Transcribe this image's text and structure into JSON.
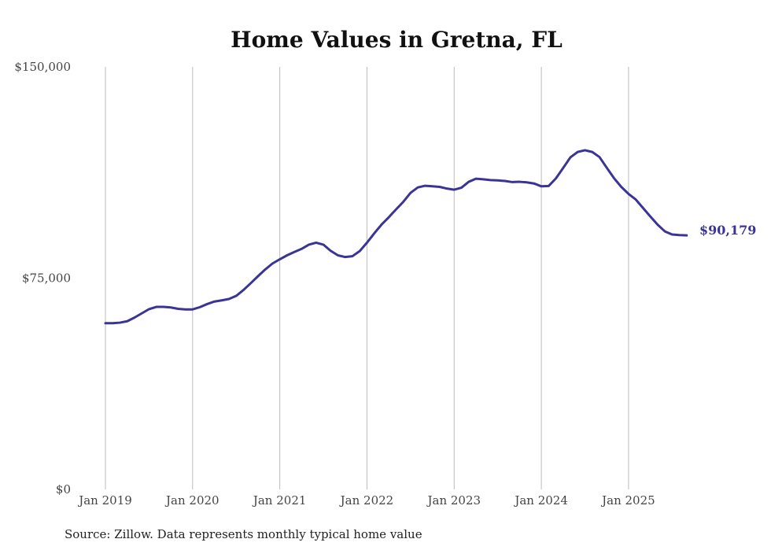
{
  "chart_data": {
    "type": "line",
    "title": "Home Values in Gretna, FL",
    "xlabel": "",
    "ylabel": "",
    "ylim": [
      0,
      150000
    ],
    "y_ticks": [
      {
        "value": 0,
        "label": "$0"
      },
      {
        "value": 75000,
        "label": "$75,000"
      },
      {
        "value": 150000,
        "label": "$150,000"
      }
    ],
    "x_ticks": [
      {
        "value": "2019-01",
        "label": "Jan 2019"
      },
      {
        "value": "2020-01",
        "label": "Jan 2020"
      },
      {
        "value": "2021-01",
        "label": "Jan 2021"
      },
      {
        "value": "2022-01",
        "label": "Jan 2022"
      },
      {
        "value": "2023-01",
        "label": "Jan 2023"
      },
      {
        "value": "2024-01",
        "label": "Jan 2024"
      },
      {
        "value": "2025-01",
        "label": "Jan 2025"
      }
    ],
    "grid": "vertical",
    "legend": "none",
    "color": "#3b3497",
    "end_label": "$90,179",
    "source": "Source: Zillow. Data represents monthly typical home value",
    "series": [
      {
        "x": [
          "2019-01",
          "2019-02",
          "2019-03",
          "2019-04",
          "2019-05",
          "2019-06",
          "2019-07",
          "2019-08",
          "2019-09",
          "2019-10",
          "2019-11",
          "2019-12",
          "2020-01",
          "2020-02",
          "2020-03",
          "2020-04",
          "2020-05",
          "2020-06",
          "2020-07",
          "2020-08",
          "2020-09",
          "2020-10",
          "2020-11",
          "2020-12",
          "2021-01",
          "2021-02",
          "2021-03",
          "2021-04",
          "2021-05",
          "2021-06",
          "2021-07",
          "2021-08",
          "2021-09",
          "2021-10",
          "2021-11",
          "2021-12",
          "2022-01",
          "2022-02",
          "2022-03",
          "2022-04",
          "2022-05",
          "2022-06",
          "2022-07",
          "2022-08",
          "2022-09",
          "2022-10",
          "2022-11",
          "2022-12",
          "2023-01",
          "2023-02",
          "2023-03",
          "2023-04",
          "2023-05",
          "2023-06",
          "2023-07",
          "2023-08",
          "2023-09",
          "2023-10",
          "2023-11",
          "2023-12",
          "2024-01",
          "2024-02",
          "2024-03",
          "2024-04",
          "2024-05",
          "2024-06",
          "2024-07",
          "2024-08",
          "2024-09",
          "2024-10",
          "2024-11",
          "2024-12",
          "2025-01",
          "2025-02",
          "2025-03",
          "2025-04",
          "2025-05",
          "2025-06",
          "2025-07",
          "2025-08",
          "2025-09"
        ],
        "values": [
          59000,
          59000,
          59200,
          59700,
          61000,
          62500,
          64000,
          64800,
          64800,
          64600,
          64100,
          63900,
          63900,
          64700,
          65800,
          66700,
          67100,
          67600,
          68700,
          70800,
          73200,
          75700,
          78100,
          80200,
          81700,
          83100,
          84300,
          85400,
          86900,
          87600,
          86900,
          84700,
          83100,
          82500,
          82800,
          84600,
          87600,
          90900,
          94000,
          96600,
          99400,
          102100,
          105300,
          107200,
          107800,
          107600,
          107400,
          106800,
          106400,
          107100,
          109200,
          110300,
          110100,
          109800,
          109700,
          109500,
          109100,
          109200,
          109000,
          108600,
          107600,
          107700,
          110400,
          114100,
          117900,
          119800,
          120400,
          119800,
          118000,
          114200,
          110500,
          107400,
          104900,
          102900,
          99900,
          96900,
          94000,
          91600,
          90500,
          90300,
          90179
        ]
      }
    ]
  }
}
